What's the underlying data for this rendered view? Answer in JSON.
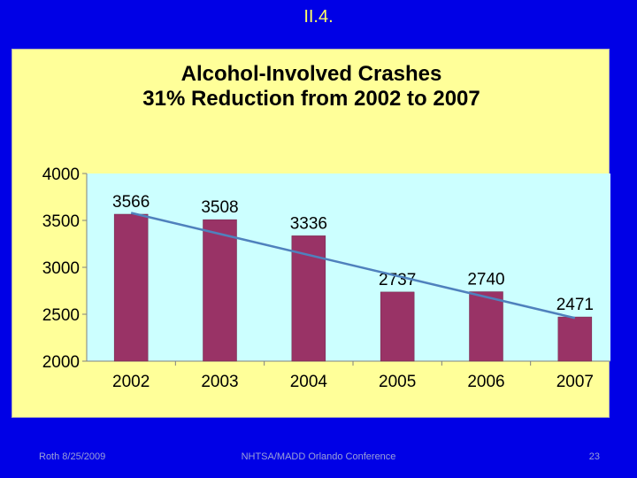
{
  "slide": {
    "title": "II.4.",
    "footer_left": "Roth 8/25/2009",
    "footer_center": "NHTSA/MADD Orlando Conference",
    "footer_right": "23"
  },
  "colors": {
    "background": "#0000e6",
    "chart_background": "#ffff99",
    "plot_area": "#ccffff",
    "bar": "#993366",
    "trendline": "#4f81bd"
  },
  "chart_data": {
    "type": "bar",
    "title": "Alcohol-Involved Crashes",
    "subtitle": "31% Reduction from 2002 to 2007",
    "categories": [
      "2002",
      "2003",
      "2004",
      "2005",
      "2006",
      "2007"
    ],
    "values": [
      3566,
      3508,
      3336,
      2737,
      2740,
      2471
    ],
    "data_labels": [
      "3566",
      "3508",
      "3336",
      "2737",
      "2740",
      "2471"
    ],
    "ylim": [
      2000,
      4000
    ],
    "yticks": [
      "2000",
      "2500",
      "3000",
      "3500",
      "4000"
    ],
    "ytick_values": [
      2000,
      2500,
      3000,
      3500,
      4000
    ],
    "trendline": {
      "from": "2002",
      "to": "2007",
      "start": 3580,
      "end": 2460
    },
    "xlabel": "",
    "ylabel": "",
    "grid": false,
    "legend": "none"
  }
}
